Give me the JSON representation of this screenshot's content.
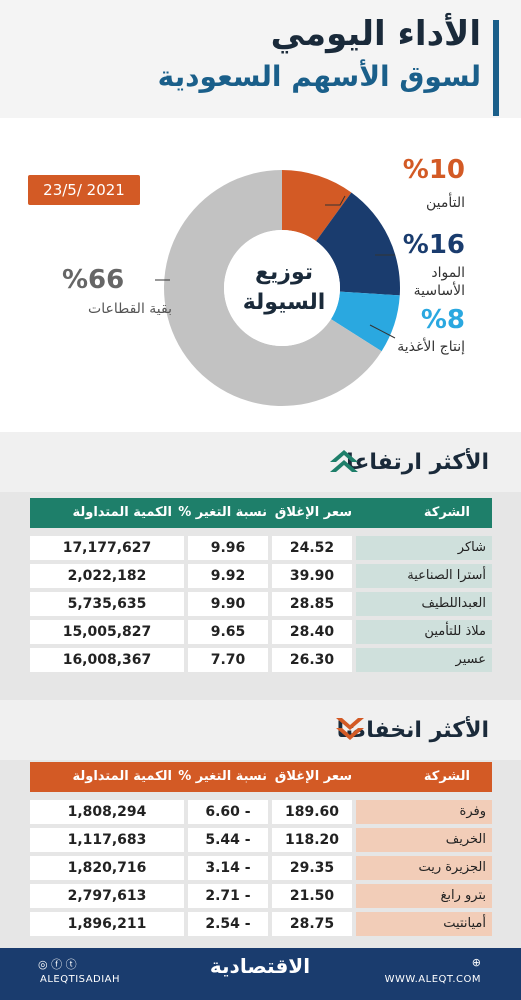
{
  "header": {
    "title_line1": "الأداء اليومي",
    "title_line2": "لسوق الأسهم السعودية"
  },
  "date": "23/5/ 2021",
  "colors": {
    "insurance": "#d35a25",
    "materials": "#1a3c6e",
    "food": "#2aa8e0",
    "other": "#c2c2c2",
    "green": "#1e7f6a",
    "orange": "#d35a25"
  },
  "chart_data": {
    "type": "pie",
    "title": "توزيع السيولة",
    "center_label_line1": "توزيع",
    "center_label_line2": "السيولة",
    "slices": [
      {
        "label": "التأمين",
        "value": 10,
        "pct_label": "%10"
      },
      {
        "label_line1": "المواد",
        "label_line2": "الأساسية",
        "value": 16,
        "pct_label": "%16"
      },
      {
        "label": "إنتاج الأغذية",
        "value": 8,
        "pct_label": "%8"
      },
      {
        "label": "بقية القطاعات",
        "value": 66,
        "pct_label": "%66"
      }
    ]
  },
  "gainers": {
    "title": "الأكثر ارتفاعا",
    "columns": {
      "company": "الشركة",
      "close": "سعر الإغلاق",
      "change": "نسبة التغير %",
      "volume": "الكمية المتداولة"
    },
    "rows": [
      {
        "company": "شاكر",
        "close": "24.52",
        "change": "9.96",
        "volume": "17,177,627"
      },
      {
        "company": "أسترا الصناعية",
        "close": "39.90",
        "change": "9.92",
        "volume": "2,022,182"
      },
      {
        "company": "العبداللطيف",
        "close": "28.85",
        "change": "9.90",
        "volume": "5,735,635"
      },
      {
        "company": "ملاذ للتأمين",
        "close": "28.40",
        "change": "9.65",
        "volume": "15,005,827"
      },
      {
        "company": "عسير",
        "close": "26.30",
        "change": "7.70",
        "volume": "16,008,367"
      }
    ]
  },
  "losers": {
    "title": "الأكثر انخفاضا",
    "columns": {
      "company": "الشركة",
      "close": "سعر الإغلاق",
      "change": "نسبة التغير %",
      "volume": "الكمية المتداولة"
    },
    "rows": [
      {
        "company": "وفرة",
        "close": "189.60",
        "change": "6.60 -",
        "volume": "1,808,294"
      },
      {
        "company": "الخريف",
        "close": "118.20",
        "change": "5.44 -",
        "volume": "1,117,683"
      },
      {
        "company": "الجزيرة ريت",
        "close": "29.35",
        "change": "3.14 -",
        "volume": "1,820,716"
      },
      {
        "company": "بترو رابغ",
        "close": "21.50",
        "change": "2.71 -",
        "volume": "2,797,613"
      },
      {
        "company": "أميانتيت",
        "close": "28.75",
        "change": "2.54 -",
        "volume": "1,896,211"
      }
    ]
  },
  "footer": {
    "social": "ALEQTISADIAH",
    "logo": "الاقتصادية",
    "website": "WWW.ALEQT.COM"
  }
}
